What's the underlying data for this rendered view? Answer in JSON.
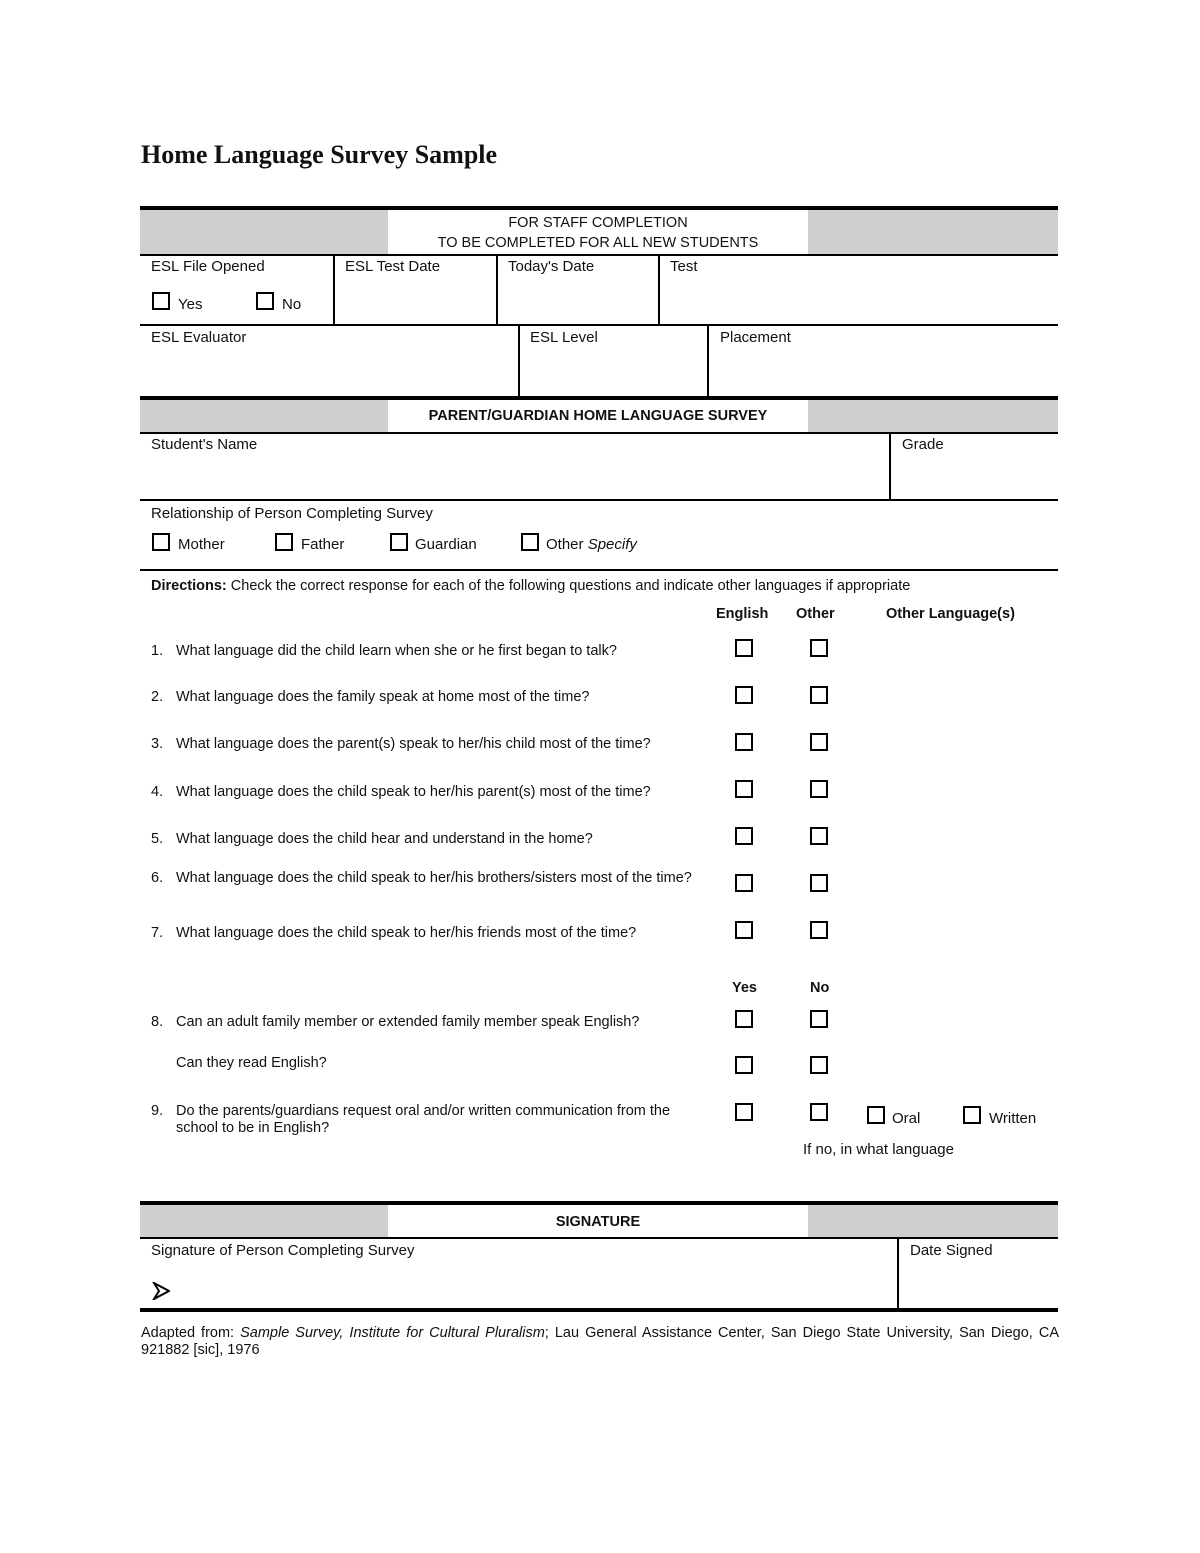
{
  "title": "Home Language Survey Sample",
  "staff_section": {
    "header_line1": "FOR STAFF COMPLETION",
    "header_line2": "TO BE COMPLETED FOR ALL NEW STUDENTS",
    "esl_file_opened": "ESL File Opened",
    "yes": "Yes",
    "no": "No",
    "esl_test_date": "ESL Test Date",
    "todays_date": "Today's Date",
    "test": "Test",
    "esl_evaluator": "ESL Evaluator",
    "esl_level": "ESL Level",
    "placement": "Placement"
  },
  "survey_section": {
    "header": "PARENT/GUARDIAN HOME LANGUAGE SURVEY",
    "students_name": "Student's Name",
    "grade": "Grade",
    "relationship": "Relationship of Person Completing Survey",
    "relationship_options": [
      "Mother",
      "Father",
      "Guardian",
      "Other"
    ],
    "specify": "Specify",
    "directions_label": "Directions:",
    "directions_text": "Check the correct response for each of the following questions and indicate other languages if appropriate",
    "col_english": "English",
    "col_other": "Other",
    "col_other_languages": "Other Language(s)",
    "questions": [
      {
        "num": "1.",
        "text": "What language did the child learn when she or he first began to talk?"
      },
      {
        "num": "2.",
        "text": "What language does the family speak at home most of the time?"
      },
      {
        "num": "3.",
        "text": "What language does the parent(s) speak to her/his child most of the time?"
      },
      {
        "num": "4.",
        "text": "What language does the child speak to her/his parent(s) most of the time?"
      },
      {
        "num": "5.",
        "text": "What language does the child hear and understand in the home?"
      },
      {
        "num": "6.",
        "text": "What language does the child speak to her/his brothers/sisters most of the time?"
      },
      {
        "num": "7.",
        "text": "What language does the child speak to her/his friends most of the time?"
      }
    ],
    "col_yes": "Yes",
    "col_no": "No",
    "q8": {
      "num": "8.",
      "text": "Can an adult family member or extended family member speak English?"
    },
    "q8b": {
      "text": "Can they read English?"
    },
    "q9": {
      "num": "9.",
      "text": "Do the parents/guardians request oral and/or written communication from the school to be in English?"
    },
    "oral": "Oral",
    "written": "Written",
    "if_no": "If no, in what language"
  },
  "signature_section": {
    "header": "SIGNATURE",
    "signature_label": "Signature of Person Completing Survey",
    "date_signed": "Date Signed",
    "arrow_icon": "arrowhead-icon"
  },
  "footer": {
    "prefix": "Adapted from: ",
    "italic": "Sample Survey, Institute for Cultural Pluralism",
    "rest": "; Lau General Assistance Center, San Diego State University, San Diego, CA  921882 [sic], 1976"
  }
}
